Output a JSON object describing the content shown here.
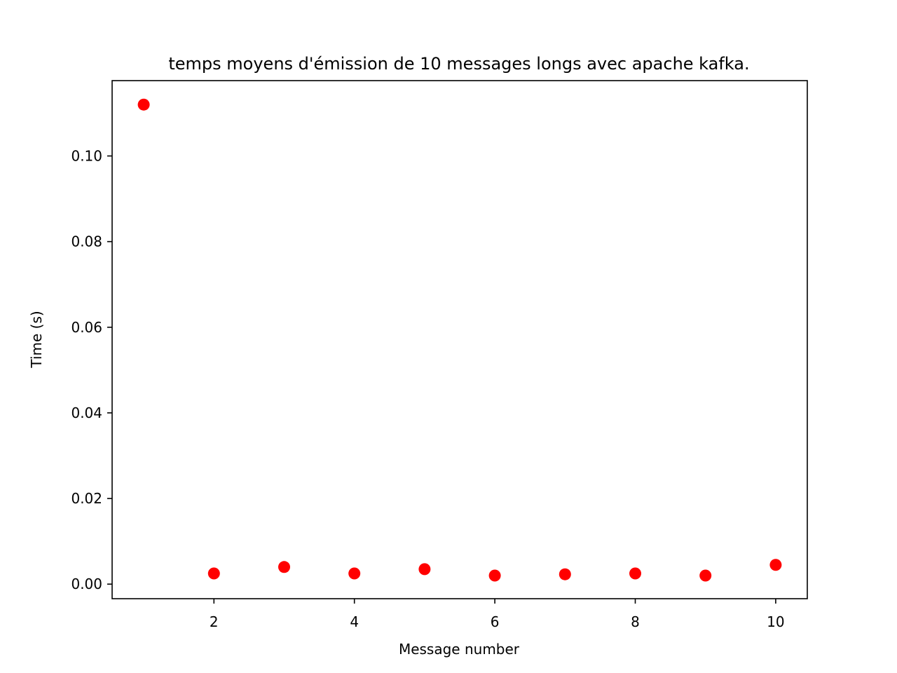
{
  "chart_data": {
    "type": "scatter",
    "title": "temps moyens d'émission de 10 messages longs avec apache kafka.",
    "xlabel": "Message number",
    "ylabel": "Time (s)",
    "xlim": [
      0.55,
      10.45
    ],
    "ylim": [
      -0.0034,
      0.1176
    ],
    "xticks": [
      2,
      4,
      6,
      8,
      10
    ],
    "xtick_labels": [
      "2",
      "4",
      "6",
      "8",
      "10"
    ],
    "yticks": [
      0.0,
      0.02,
      0.04,
      0.06,
      0.08,
      0.1
    ],
    "ytick_labels": [
      "0.00",
      "0.02",
      "0.04",
      "0.06",
      "0.08",
      "0.10"
    ],
    "grid": false,
    "marker_color": "#ff0000",
    "x": [
      1,
      2,
      3,
      4,
      5,
      6,
      7,
      8,
      9,
      10
    ],
    "y": [
      0.112,
      0.0025,
      0.004,
      0.0025,
      0.0035,
      0.002,
      0.0023,
      0.0025,
      0.002,
      0.0045
    ]
  }
}
